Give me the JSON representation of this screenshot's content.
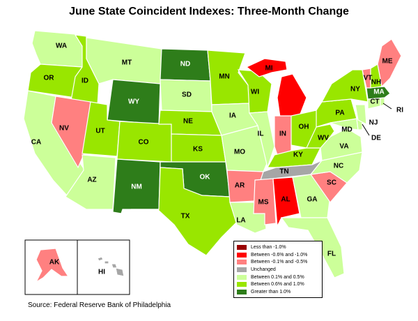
{
  "title": "June State Coincident Indexes: Three-Month Change",
  "source": "Source: Federal Reserve Bank of Philadelphia",
  "colors": {
    "lt_neg1": "#990000",
    "neg06_neg1": "#ff0000",
    "neg01_neg05": "#ff8080",
    "unchanged": "#a6a6a6",
    "pos01_05": "#ccff99",
    "pos06_10": "#99e600",
    "gt1": "#2e7d1a"
  },
  "legend": [
    {
      "key": "lt_neg1",
      "label": "Less than -1.0%"
    },
    {
      "key": "neg06_neg1",
      "label": "Between -0.6% and -1.0%"
    },
    {
      "key": "neg01_neg05",
      "label": "Between -0.1% and -0.5%"
    },
    {
      "key": "unchanged",
      "label": "Unchanged"
    },
    {
      "key": "pos01_05",
      "label": "Between 0.1% and 0.5%"
    },
    {
      "key": "pos06_10",
      "label": "Between 0.6% and 1.0%"
    },
    {
      "key": "gt1",
      "label": "Greater than 1.0%"
    }
  ],
  "states": [
    {
      "abbr": "WA",
      "category": "pos01_05"
    },
    {
      "abbr": "OR",
      "category": "pos06_10"
    },
    {
      "abbr": "CA",
      "category": "pos01_05"
    },
    {
      "abbr": "ID",
      "category": "pos06_10"
    },
    {
      "abbr": "NV",
      "category": "neg01_neg05"
    },
    {
      "abbr": "MT",
      "category": "pos01_05"
    },
    {
      "abbr": "WY",
      "category": "gt1"
    },
    {
      "abbr": "UT",
      "category": "pos06_10"
    },
    {
      "abbr": "AZ",
      "category": "pos01_05"
    },
    {
      "abbr": "CO",
      "category": "pos06_10"
    },
    {
      "abbr": "NM",
      "category": "gt1"
    },
    {
      "abbr": "ND",
      "category": "gt1"
    },
    {
      "abbr": "SD",
      "category": "pos01_05"
    },
    {
      "abbr": "NE",
      "category": "pos06_10"
    },
    {
      "abbr": "KS",
      "category": "pos06_10"
    },
    {
      "abbr": "OK",
      "category": "gt1"
    },
    {
      "abbr": "TX",
      "category": "pos06_10"
    },
    {
      "abbr": "MN",
      "category": "pos06_10"
    },
    {
      "abbr": "IA",
      "category": "pos01_05"
    },
    {
      "abbr": "MO",
      "category": "pos01_05"
    },
    {
      "abbr": "AR",
      "category": "neg01_neg05"
    },
    {
      "abbr": "LA",
      "category": "pos01_05"
    },
    {
      "abbr": "WI",
      "category": "pos06_10"
    },
    {
      "abbr": "IL",
      "category": "pos01_05"
    },
    {
      "abbr": "MI",
      "category": "neg06_neg1"
    },
    {
      "abbr": "IN",
      "category": "neg01_neg05"
    },
    {
      "abbr": "OH",
      "category": "pos06_10"
    },
    {
      "abbr": "KY",
      "category": "pos06_10"
    },
    {
      "abbr": "TN",
      "category": "unchanged"
    },
    {
      "abbr": "MS",
      "category": "neg01_neg05"
    },
    {
      "abbr": "AL",
      "category": "neg06_neg1"
    },
    {
      "abbr": "GA",
      "category": "pos01_05"
    },
    {
      "abbr": "FL",
      "category": "pos01_05"
    },
    {
      "abbr": "SC",
      "category": "neg01_neg05"
    },
    {
      "abbr": "NC",
      "category": "pos01_05"
    },
    {
      "abbr": "VA",
      "category": "pos01_05"
    },
    {
      "abbr": "WV",
      "category": "pos06_10"
    },
    {
      "abbr": "MD",
      "category": "pos01_05"
    },
    {
      "abbr": "DE",
      "category": "pos01_05"
    },
    {
      "abbr": "PA",
      "category": "pos06_10"
    },
    {
      "abbr": "NJ",
      "category": "pos01_05"
    },
    {
      "abbr": "NY",
      "category": "pos06_10"
    },
    {
      "abbr": "CT",
      "category": "pos01_05"
    },
    {
      "abbr": "RI",
      "category": "pos01_05"
    },
    {
      "abbr": "MA",
      "category": "gt1"
    },
    {
      "abbr": "VT",
      "category": "neg01_neg05"
    },
    {
      "abbr": "NH",
      "category": "pos06_10"
    },
    {
      "abbr": "ME",
      "category": "neg01_neg05"
    },
    {
      "abbr": "AK",
      "category": "neg01_neg05"
    },
    {
      "abbr": "HI",
      "category": "unchanged"
    }
  ]
}
